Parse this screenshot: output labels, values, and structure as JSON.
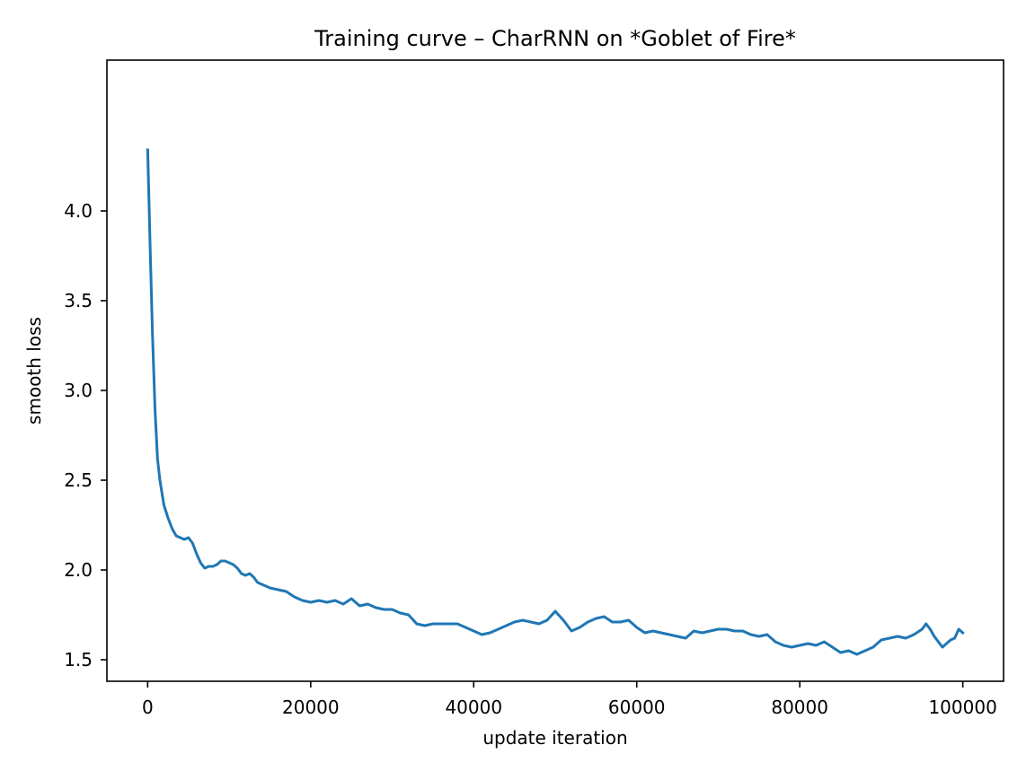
{
  "chart_data": {
    "type": "line",
    "title": "Training curve – CharRNN on *Goblet of Fire*",
    "xlabel": "update iteration",
    "ylabel": "smooth loss",
    "xlim": [
      -5000,
      105000
    ],
    "ylim": [
      1.38,
      4.84
    ],
    "xticks": [
      0,
      20000,
      40000,
      60000,
      80000,
      100000
    ],
    "xtick_labels": [
      "0",
      "20000",
      "40000",
      "60000",
      "80000",
      "100000"
    ],
    "yticks": [
      1.5,
      2.0,
      2.5,
      3.0,
      3.5,
      4.0
    ],
    "ytick_labels": [
      "1.5",
      "2.0",
      "2.5",
      "3.0",
      "3.5",
      "4.0"
    ],
    "grid": false,
    "legend": false,
    "color": "#1f77b4",
    "series": [
      {
        "x": [
          0,
          300,
          600,
          900,
          1200,
          1500,
          2000,
          2500,
          3000,
          3500,
          4000,
          4500,
          5000,
          5500,
          6000,
          6500,
          7000,
          7500,
          8000,
          8500,
          9000,
          9500,
          10000,
          10500,
          11000,
          11500,
          12000,
          12500,
          13000,
          13500,
          14000,
          15000,
          16000,
          17000,
          18000,
          19000,
          20000,
          21000,
          22000,
          23000,
          24000,
          25000,
          26000,
          27000,
          28000,
          29000,
          30000,
          31000,
          32000,
          33000,
          34000,
          35000,
          36000,
          37000,
          38000,
          39000,
          40000,
          41000,
          42000,
          43000,
          44000,
          45000,
          46000,
          47000,
          48000,
          49000,
          50000,
          51000,
          52000,
          53000,
          54000,
          55000,
          56000,
          57000,
          58000,
          59000,
          60000,
          61000,
          62000,
          63000,
          64000,
          65000,
          66000,
          67000,
          68000,
          69000,
          70000,
          71000,
          72000,
          73000,
          74000,
          75000,
          76000,
          77000,
          78000,
          79000,
          80000,
          81000,
          82000,
          83000,
          84000,
          85000,
          86000,
          87000,
          88000,
          89000,
          90000,
          91000,
          92000,
          93000,
          94000,
          95000,
          95500,
          96000,
          96500,
          97000,
          97500,
          98000,
          98500,
          99000,
          99500,
          100000
        ],
        "y": [
          4.34,
          3.8,
          3.3,
          2.9,
          2.62,
          2.5,
          2.36,
          2.29,
          2.23,
          2.19,
          2.18,
          2.17,
          2.18,
          2.15,
          2.09,
          2.04,
          2.01,
          2.02,
          2.02,
          2.03,
          2.05,
          2.05,
          2.04,
          2.03,
          2.01,
          1.98,
          1.97,
          1.98,
          1.96,
          1.93,
          1.92,
          1.9,
          1.89,
          1.88,
          1.85,
          1.83,
          1.82,
          1.83,
          1.82,
          1.83,
          1.81,
          1.84,
          1.8,
          1.81,
          1.79,
          1.78,
          1.78,
          1.76,
          1.75,
          1.7,
          1.69,
          1.7,
          1.7,
          1.7,
          1.7,
          1.68,
          1.66,
          1.64,
          1.65,
          1.67,
          1.69,
          1.71,
          1.72,
          1.71,
          1.7,
          1.72,
          1.77,
          1.72,
          1.66,
          1.68,
          1.71,
          1.73,
          1.74,
          1.71,
          1.71,
          1.72,
          1.68,
          1.65,
          1.66,
          1.65,
          1.64,
          1.63,
          1.62,
          1.66,
          1.65,
          1.66,
          1.67,
          1.67,
          1.66,
          1.66,
          1.64,
          1.63,
          1.64,
          1.6,
          1.58,
          1.57,
          1.58,
          1.59,
          1.58,
          1.6,
          1.57,
          1.54,
          1.55,
          1.53,
          1.55,
          1.57,
          1.61,
          1.62,
          1.63,
          1.62,
          1.64,
          1.67,
          1.7,
          1.67,
          1.63,
          1.6,
          1.57,
          1.59,
          1.61,
          1.62,
          1.67,
          1.65
        ]
      }
    ]
  }
}
